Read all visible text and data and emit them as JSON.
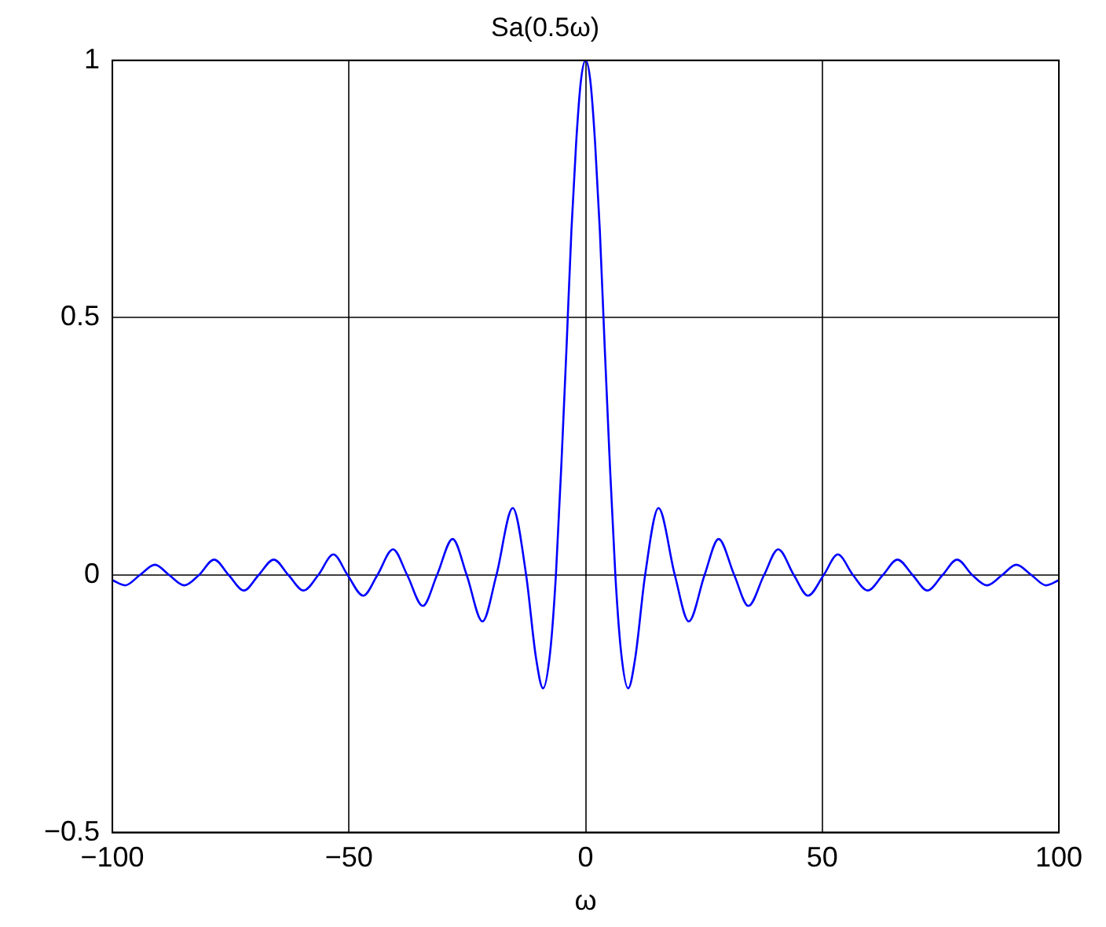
{
  "chart_data": {
    "type": "line",
    "title": "Sa(0.5ω)",
    "xlabel": "ω",
    "x": [
      -100,
      -97.3,
      -94.2,
      -91,
      -88,
      -84.8,
      -81.7,
      -78.5,
      -75.4,
      -72.2,
      -69.1,
      -65.9,
      -62.8,
      -59.6,
      -56.5,
      -53.3,
      -50.3,
      -47,
      -44,
      -40.7,
      -37.7,
      -34.4,
      -31.4,
      -28.1,
      -25.13,
      -21.8,
      -18.85,
      -15.4,
      -12.57,
      -10.5,
      -9,
      -7.5,
      -6.28,
      -5,
      -4,
      -3,
      -2,
      -1,
      0,
      1,
      2,
      3,
      4,
      5,
      6.28,
      7.5,
      9,
      10.5,
      12.57,
      15.4,
      18.85,
      21.8,
      25.13,
      28.1,
      31.4,
      34.4,
      37.7,
      40.7,
      44,
      47,
      50.3,
      53.3,
      56.5,
      59.6,
      62.8,
      65.9,
      69.1,
      72.2,
      75.4,
      78.5,
      81.7,
      84.8,
      88,
      91,
      94.2,
      97.3,
      100
    ],
    "series": [
      {
        "color": "#0000ff",
        "values": [
          -0.01,
          -0.02,
          0,
          0.02,
          0,
          -0.02,
          0,
          0.03,
          0,
          -0.03,
          0,
          0.03,
          0,
          -0.03,
          0,
          0.04,
          0,
          -0.04,
          0,
          0.05,
          0,
          -0.06,
          0,
          0.07,
          0,
          -0.09,
          0,
          0.13,
          0,
          -0.16,
          -0.22,
          -0.15,
          0,
          0.24,
          0.45,
          0.67,
          0.84,
          0.96,
          1,
          0.96,
          0.84,
          0.67,
          0.45,
          0.24,
          0,
          -0.15,
          -0.22,
          -0.16,
          0,
          0.13,
          0,
          -0.09,
          0,
          0.07,
          0,
          -0.06,
          0,
          0.05,
          0,
          -0.04,
          0,
          0.04,
          0,
          -0.03,
          0,
          0.03,
          0,
          -0.03,
          0,
          0.03,
          0,
          -0.02,
          0,
          0.02,
          0,
          -0.02,
          -0.01
        ]
      }
    ],
    "xlim": [
      -100,
      100
    ],
    "xticks": [
      {
        "value": -100,
        "label": "−100"
      },
      {
        "value": -50,
        "label": "−50"
      },
      0,
      50,
      100
    ],
    "ylim": [
      -0.5,
      1
    ],
    "yticks": [
      {
        "value": -0.5,
        "label": "−0.5"
      },
      0,
      0.5,
      1
    ],
    "grid": true,
    "legend": false,
    "marker": "none",
    "line_style": "solid"
  }
}
